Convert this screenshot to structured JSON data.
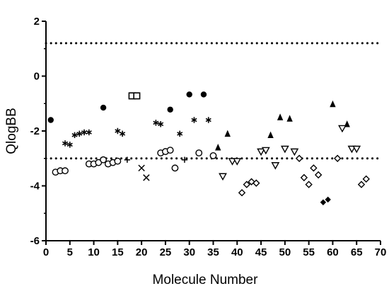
{
  "chart_data": {
    "type": "scatter",
    "xlabel": "Molecule Number",
    "ylabel": "QlogBB",
    "xlim": [
      0,
      70
    ],
    "ylim": [
      -6,
      2
    ],
    "x_ticks": [
      0,
      5,
      10,
      15,
      20,
      25,
      30,
      35,
      40,
      45,
      50,
      55,
      60,
      65,
      70
    ],
    "y_ticks": [
      -6,
      -4,
      -2,
      0,
      2
    ],
    "x_tick_labels": [
      "0",
      "5",
      "10",
      "15",
      "20",
      "25",
      "30",
      "35",
      "40",
      "45",
      "50",
      "55",
      "60",
      "65",
      "70"
    ],
    "y_tick_labels": [
      "-6",
      "-4",
      "-2",
      "0",
      "2"
    ],
    "grid": false,
    "reference_lines": [
      1.2,
      -3.0
    ],
    "colors": {
      "marker": "#000000",
      "axis": "#000000",
      "reference_line": "#000000"
    },
    "series": [
      {
        "marker": "filled-circle",
        "points": [
          [
            1,
            -1.6
          ],
          [
            12,
            -1.15
          ],
          [
            26,
            -1.22
          ],
          [
            30,
            -0.67
          ],
          [
            33,
            -0.67
          ]
        ]
      },
      {
        "marker": "open-circle",
        "points": [
          [
            2,
            -3.5
          ],
          [
            3,
            -3.45
          ],
          [
            4,
            -3.45
          ],
          [
            9,
            -3.2
          ],
          [
            10,
            -3.2
          ],
          [
            11,
            -3.15
          ],
          [
            12,
            -3.05
          ],
          [
            13,
            -3.2
          ],
          [
            14,
            -3.15
          ],
          [
            15,
            -3.1
          ],
          [
            24,
            -2.8
          ],
          [
            25,
            -2.75
          ],
          [
            26,
            -2.7
          ],
          [
            27,
            -3.35
          ],
          [
            32,
            -2.8
          ],
          [
            35,
            -2.9
          ]
        ]
      },
      {
        "marker": "asterisk",
        "points": [
          [
            4,
            -2.45
          ],
          [
            5,
            -2.5
          ],
          [
            6,
            -2.15
          ],
          [
            7,
            -2.1
          ],
          [
            8,
            -2.05
          ],
          [
            9,
            -2.05
          ],
          [
            15,
            -2.0
          ],
          [
            16,
            -2.1
          ],
          [
            23,
            -1.7
          ],
          [
            24,
            -1.75
          ],
          [
            28,
            -2.1
          ],
          [
            31,
            -1.6
          ],
          [
            34,
            -1.6
          ]
        ]
      },
      {
        "marker": "open-square",
        "points": [
          [
            18,
            -0.72
          ],
          [
            19,
            -0.72
          ]
        ]
      },
      {
        "marker": "plus",
        "points": [
          [
            17,
            -3.05
          ],
          [
            29,
            -3.05
          ]
        ]
      },
      {
        "marker": "cross",
        "points": [
          [
            20,
            -3.35
          ],
          [
            21,
            -3.7
          ]
        ]
      },
      {
        "marker": "filled-triangle",
        "points": [
          [
            36,
            -2.6
          ],
          [
            38,
            -2.1
          ],
          [
            47,
            -2.15
          ],
          [
            49,
            -1.5
          ],
          [
            51,
            -1.55
          ],
          [
            60,
            -1.02
          ],
          [
            63,
            -1.75
          ]
        ]
      },
      {
        "marker": "open-triangle-down",
        "points": [
          [
            37,
            -3.65
          ],
          [
            39,
            -3.1
          ],
          [
            40,
            -3.1
          ],
          [
            45,
            -2.75
          ],
          [
            46,
            -2.7
          ],
          [
            48,
            -3.25
          ],
          [
            50,
            -2.65
          ],
          [
            52,
            -2.75
          ],
          [
            62,
            -1.9
          ],
          [
            64,
            -2.65
          ],
          [
            65,
            -2.65
          ]
        ]
      },
      {
        "marker": "open-diamond",
        "points": [
          [
            41,
            -4.25
          ],
          [
            42,
            -3.95
          ],
          [
            43,
            -3.85
          ],
          [
            44,
            -3.9
          ],
          [
            53,
            -3.0
          ],
          [
            54,
            -3.7
          ],
          [
            55,
            -3.95
          ],
          [
            56,
            -3.35
          ],
          [
            57,
            -3.6
          ],
          [
            61,
            -3.0
          ],
          [
            66,
            -3.95
          ],
          [
            67,
            -3.75
          ]
        ]
      },
      {
        "marker": "filled-diamond",
        "points": [
          [
            58,
            -4.6
          ],
          [
            59,
            -4.5
          ]
        ]
      }
    ]
  }
}
